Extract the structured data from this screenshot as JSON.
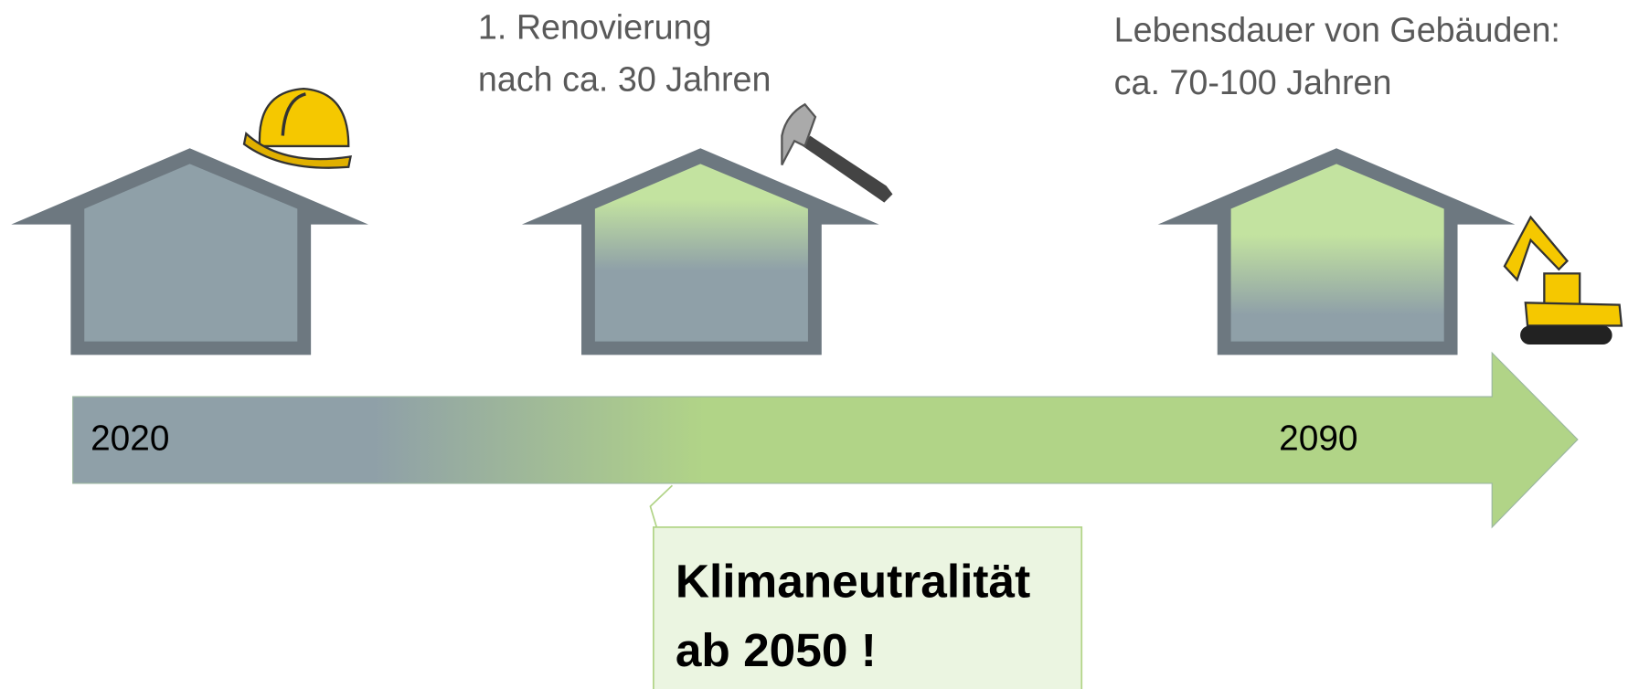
{
  "notes": [
    {
      "lines": [
        "1. Renovierung",
        "nach ca. 30 Jahren"
      ]
    },
    {
      "lines": [
        "Lebensdauer von Gebäuden:",
        "ca. 70-100 Jahren"
      ]
    }
  ],
  "timeline": {
    "start": "2020",
    "end": "2090"
  },
  "callout": {
    "lines": [
      "Klimaneutralität",
      "ab 2050 !"
    ]
  }
}
